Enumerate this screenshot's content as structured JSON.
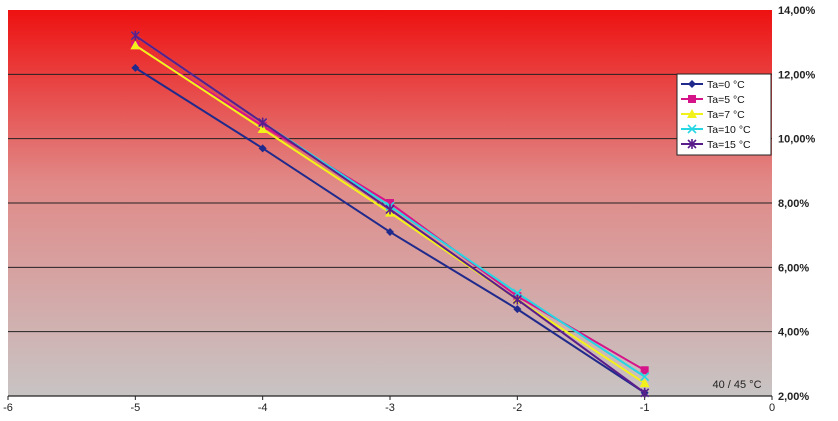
{
  "chart_data": {
    "type": "line",
    "title": "",
    "xlabel": "",
    "ylabel": "",
    "xlim": [
      -6,
      0
    ],
    "ylim": [
      2.0,
      14.0
    ],
    "x_ticks": [
      "-6",
      "-5",
      "-4",
      "-3",
      "-2",
      "-1",
      "0"
    ],
    "y_ticks": [
      "2,00%",
      "4,00%",
      "6,00%",
      "8,00%",
      "10,00%",
      "12,00%",
      "14,00%"
    ],
    "y_axis_position": "right",
    "grid": "horizontal",
    "legend_position": "top-right",
    "annotation": "40 / 45 °C",
    "background_gradient": [
      "#ee1111",
      "#c8c4c4"
    ],
    "x": [
      -5,
      -4,
      -3,
      -2,
      -1
    ],
    "series": [
      {
        "name": "Ta=0 °C",
        "color": "#1f2a8c",
        "marker": "diamond",
        "values": [
          12.2,
          9.7,
          7.1,
          4.7,
          2.1
        ]
      },
      {
        "name": "Ta=5 °C",
        "color": "#d6148a",
        "marker": "square",
        "values": [
          12.9,
          10.4,
          8.0,
          5.1,
          2.8
        ]
      },
      {
        "name": "Ta=7 °C",
        "color": "#f2f21a",
        "marker": "triangle",
        "values": [
          12.9,
          10.3,
          7.7,
          5.0,
          2.4
        ]
      },
      {
        "name": "Ta=10 °C",
        "color": "#27d6e3",
        "marker": "x",
        "values": [
          13.2,
          10.5,
          7.9,
          5.2,
          2.6
        ]
      },
      {
        "name": "Ta=15 °C",
        "color": "#5a1e8c",
        "marker": "star",
        "values": [
          13.2,
          10.5,
          7.8,
          5.0,
          2.1
        ]
      }
    ]
  }
}
